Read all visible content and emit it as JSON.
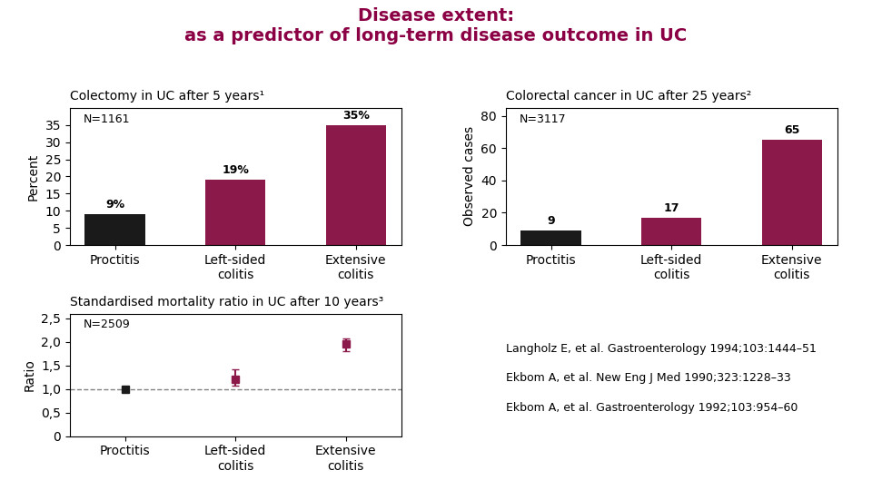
{
  "title": "Disease extent:\nas a predictor of long-term disease outcome in UC",
  "title_color": "#8B0045",
  "annotations": [
    "Langholz E, et al. Gastroenterology 1994;103:1444–51",
    "Ekbom A, et al. New Eng J Med 1990;323:1228–33",
    "Ekbom A, et al. Gastroenterology 1992;103:954–60"
  ],
  "chart_data": [
    {
      "type": "bar",
      "title": "Colectomy in UC after 5 years¹",
      "annotation": "N=1161",
      "ylabel": "Percent",
      "categories": [
        "Proctitis",
        "Left-sided\ncolitis",
        "Extensive\ncolitis"
      ],
      "values": [
        9,
        19,
        35
      ],
      "value_labels": [
        "9%",
        "19%",
        "35%"
      ],
      "data_labels": true,
      "colors": [
        "#1a1a1a",
        "#8B1A4A",
        "#8B1A4A"
      ],
      "ylim": [
        0,
        40
      ],
      "yticks": [
        0,
        5,
        10,
        15,
        20,
        25,
        30,
        35
      ]
    },
    {
      "type": "bar",
      "title": "Colorectal cancer in UC after 25 years²",
      "annotation": "N=3117",
      "ylabel": "Observed cases",
      "categories": [
        "Proctitis",
        "Left-sided\ncolitis",
        "Extensive\ncolitis"
      ],
      "values": [
        9,
        17,
        65
      ],
      "data_labels": true,
      "colors": [
        "#1a1a1a",
        "#8B1A4A",
        "#8B1A4A"
      ],
      "ylim": [
        0,
        85
      ],
      "yticks": [
        0,
        20,
        40,
        60,
        80
      ]
    },
    {
      "type": "scatter",
      "title": "Standardised mortality ratio in UC after 10 years³",
      "annotation": "N=2509",
      "ylabel": "Ratio",
      "marker": "square",
      "categories": [
        "Proctitis",
        "Left-sided\ncolitis",
        "Extensive\ncolitis"
      ],
      "values": [
        1.0,
        1.2,
        1.95
      ],
      "yerr_low": [
        0.05,
        0.12,
        0.15
      ],
      "yerr_high": [
        0.05,
        0.22,
        0.12
      ],
      "colors": [
        "#1a1a1a",
        "#8B1A4A",
        "#8B1A4A"
      ],
      "reference_line": 1.0,
      "ylim": [
        0,
        2.6
      ],
      "yticks": [
        0,
        {
          "value": 0.5,
          "label": "0,5"
        },
        {
          "value": 1.0,
          "label": "1,0"
        },
        {
          "value": 1.5,
          "label": "1,5"
        },
        {
          "value": 2.0,
          "label": "2,0"
        },
        {
          "value": 2.5,
          "label": "2,5"
        }
      ]
    }
  ]
}
